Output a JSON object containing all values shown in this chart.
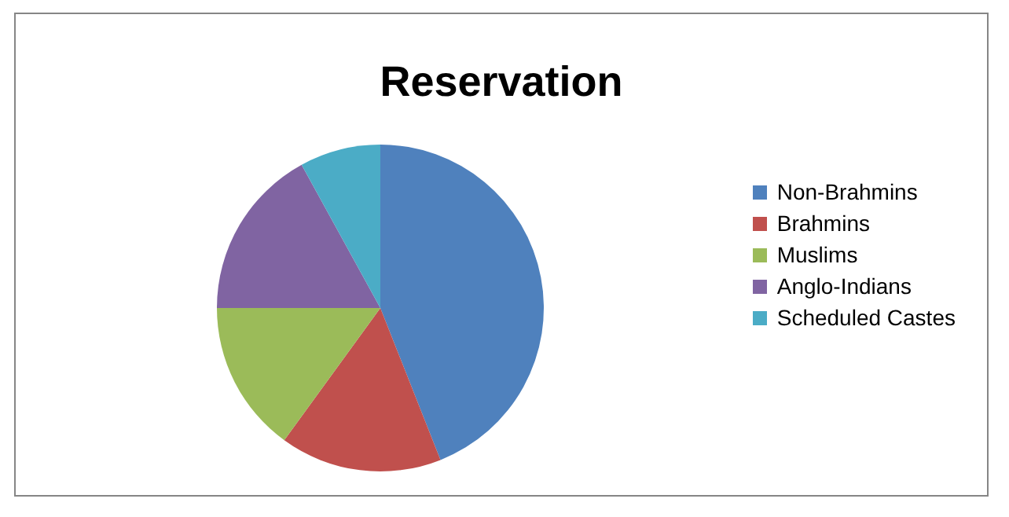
{
  "chart_data": {
    "type": "pie",
    "title": "Reservation",
    "categories": [
      "Non-Brahmins",
      "Brahmins",
      "Muslims",
      "Anglo-Indians",
      "Scheduled Castes"
    ],
    "values": [
      44,
      16,
      15,
      17,
      8
    ],
    "colors": [
      "#4f81bd",
      "#c0504d",
      "#9bbb59",
      "#8064a2",
      "#4bacc6"
    ],
    "legend": "right"
  }
}
